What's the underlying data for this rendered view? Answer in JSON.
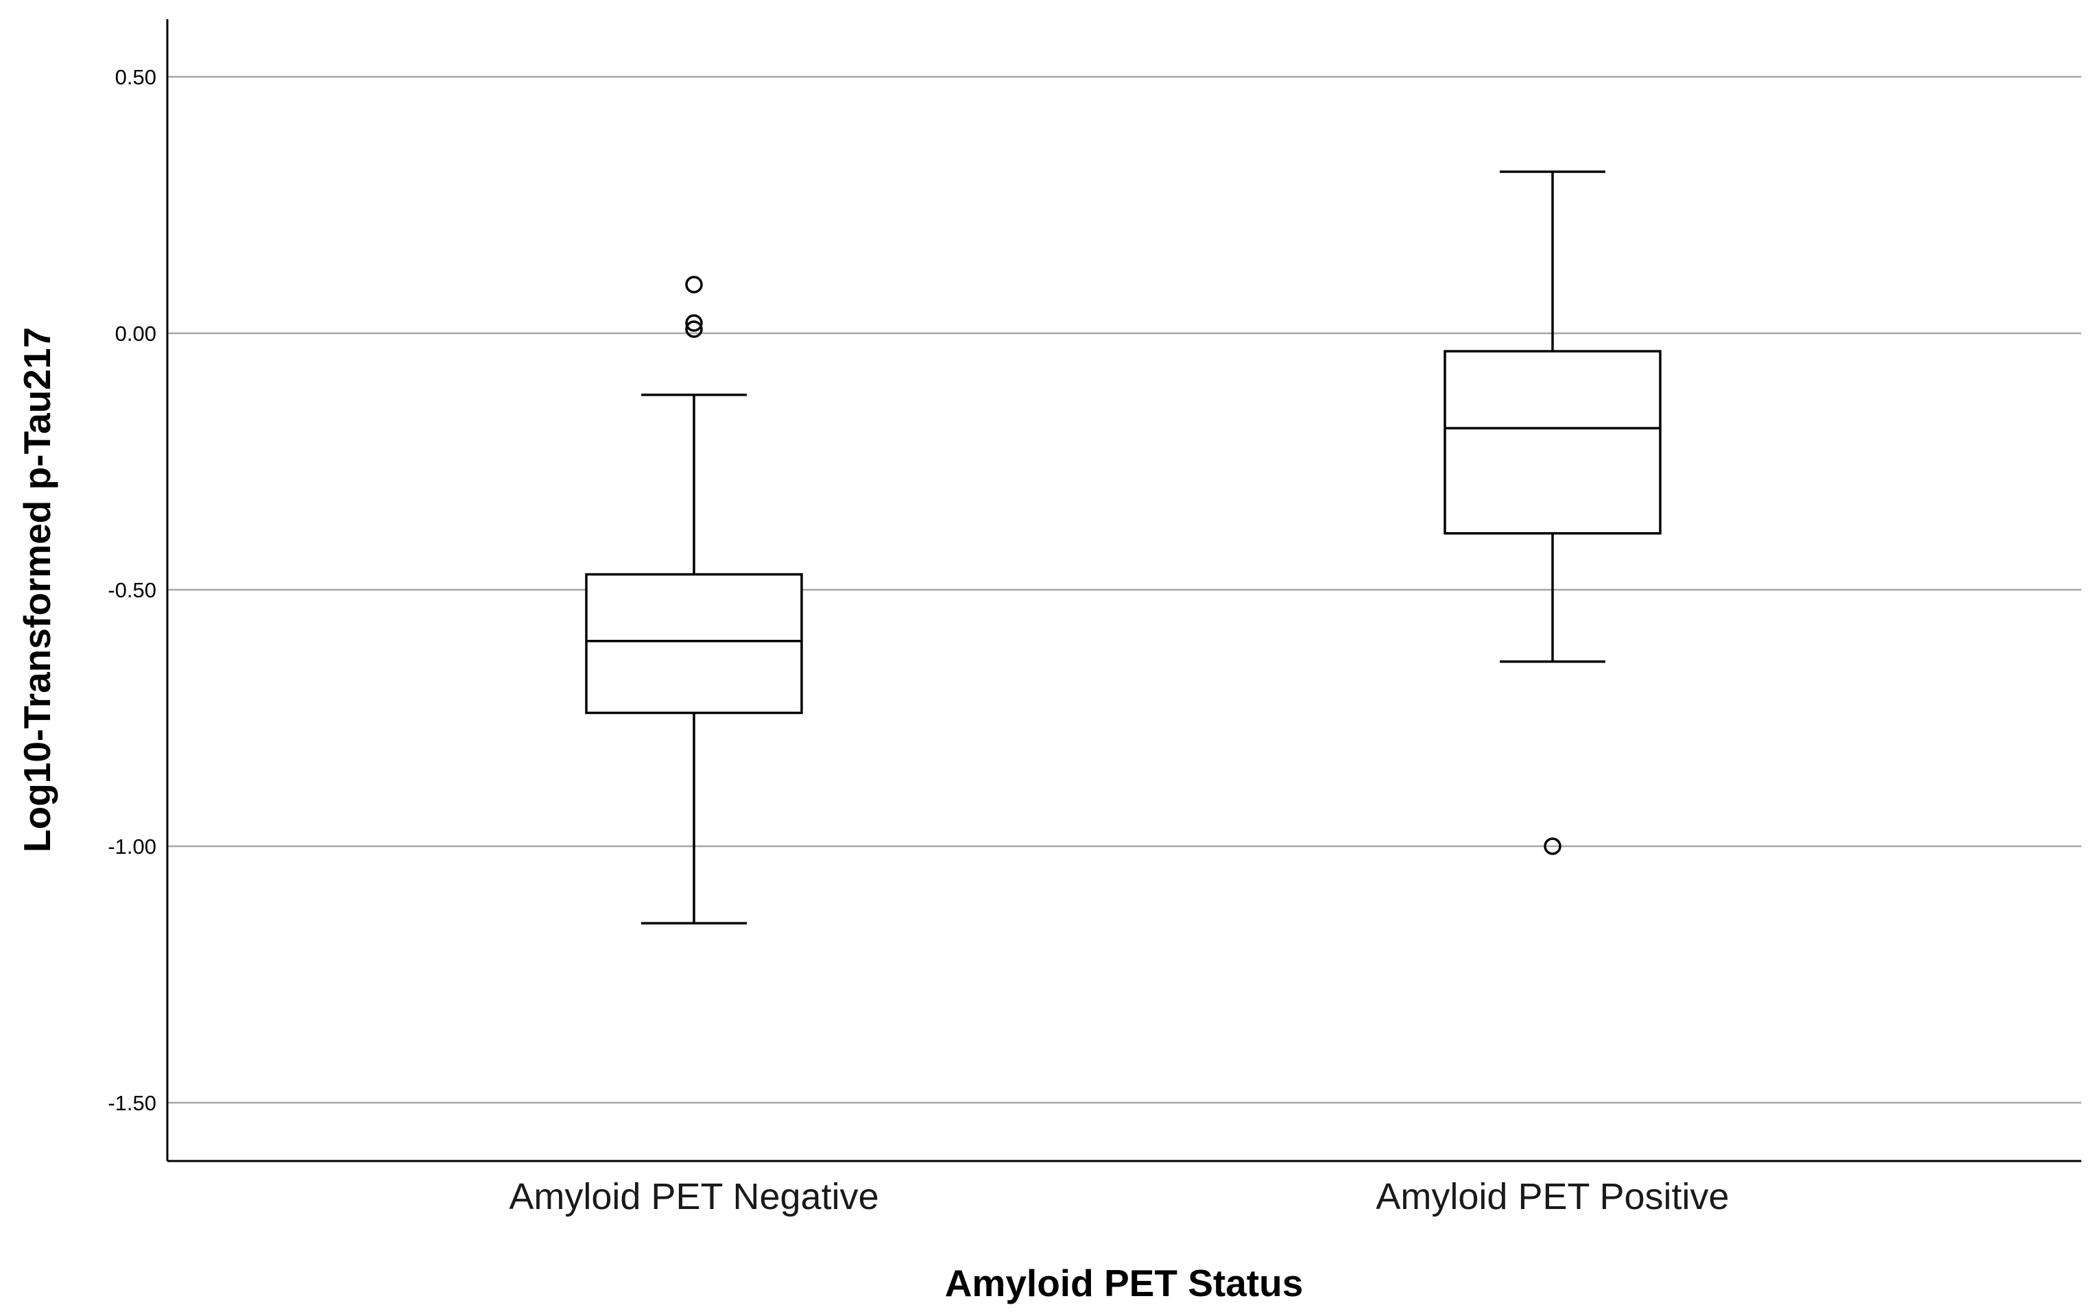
{
  "chart_data": {
    "type": "box",
    "xlabel": "Amyloid PET Status",
    "ylabel": "Log10-Transformed p-Tau217",
    "ylim": [
      -1.61,
      0.61
    ],
    "yticks": [
      0.5,
      0.0,
      -0.5,
      -1.0,
      -1.5
    ],
    "ytick_labels": [
      "0.50",
      "0.00",
      "-0.50",
      "-1.00",
      "-1.50"
    ],
    "grid": true,
    "grid_color": "#a6a6a6",
    "box_color": "#000000",
    "categories": [
      "Amyloid PET Negative",
      "Amyloid PET Positive"
    ],
    "boxes": [
      {
        "category": "Amyloid PET Negative",
        "whisker_low": -1.15,
        "q1": -0.74,
        "median": -0.6,
        "q3": -0.47,
        "whisker_high": -0.12,
        "outliers": [
          0.095,
          0.02,
          0.008
        ]
      },
      {
        "category": "Amyloid PET Positive",
        "whisker_low": -0.64,
        "q1": -0.39,
        "median": -0.185,
        "q3": -0.035,
        "whisker_high": 0.315,
        "outliers": [
          -1.0
        ]
      }
    ]
  }
}
